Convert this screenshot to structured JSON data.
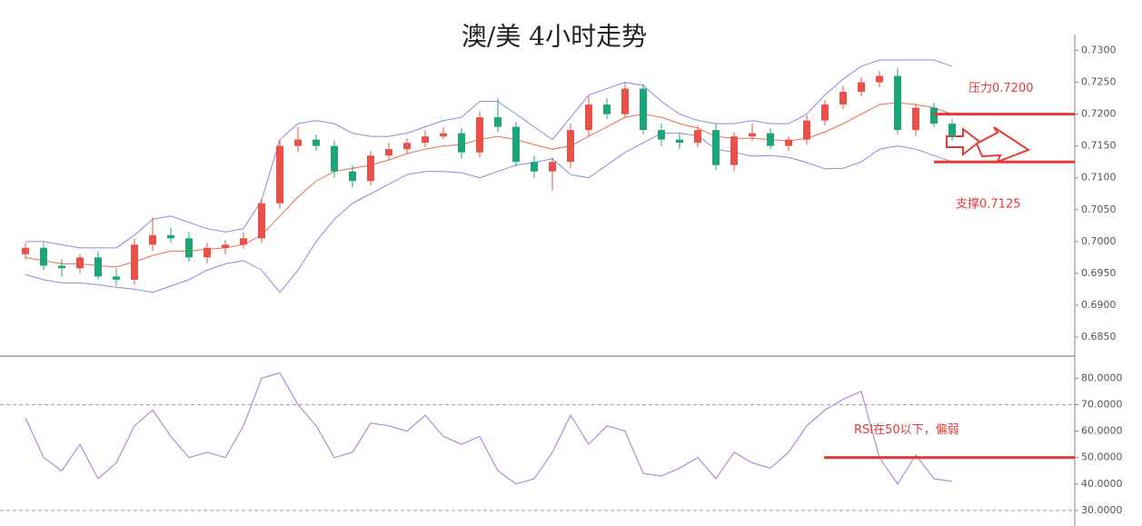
{
  "chart_data": [
    {
      "type": "candlestick",
      "title": "澳/美 4小时走势",
      "open": [
        0.698,
        0.699,
        0.6962,
        0.6958,
        0.6975,
        0.6945,
        0.694,
        0.6995,
        0.701,
        0.7005,
        0.6975,
        0.699,
        0.6995,
        0.7005,
        0.706,
        0.715,
        0.716,
        0.715,
        0.711,
        0.7095,
        0.7135,
        0.7145,
        0.7155,
        0.7165,
        0.717,
        0.714,
        0.7195,
        0.718,
        0.7125,
        0.711,
        0.7125,
        0.7175,
        0.7215,
        0.72,
        0.724,
        0.7175,
        0.716,
        0.7155,
        0.7175,
        0.712,
        0.7165,
        0.717,
        0.715,
        0.716,
        0.719,
        0.7215,
        0.7235,
        0.725,
        0.726,
        0.7175,
        0.721,
        0.7185
      ],
      "high": [
        0.6998,
        0.6998,
        0.6972,
        0.698,
        0.6985,
        0.6958,
        0.7005,
        0.7038,
        0.7022,
        0.7015,
        0.6998,
        0.7002,
        0.7015,
        0.7068,
        0.716,
        0.718,
        0.7168,
        0.7158,
        0.712,
        0.7142,
        0.7155,
        0.7162,
        0.7175,
        0.718,
        0.7178,
        0.7205,
        0.7225,
        0.7188,
        0.7135,
        0.7132,
        0.7185,
        0.7228,
        0.7225,
        0.725,
        0.7248,
        0.7185,
        0.717,
        0.7182,
        0.7185,
        0.7172,
        0.7185,
        0.7178,
        0.7165,
        0.7198,
        0.7222,
        0.7245,
        0.7258,
        0.7268,
        0.7272,
        0.7215,
        0.7218,
        0.7192
      ],
      "low": [
        0.6972,
        0.6955,
        0.6945,
        0.695,
        0.694,
        0.693,
        0.6932,
        0.6985,
        0.6998,
        0.6968,
        0.6965,
        0.698,
        0.6988,
        0.6998,
        0.7052,
        0.714,
        0.7142,
        0.71,
        0.7085,
        0.7088,
        0.7128,
        0.7138,
        0.7148,
        0.716,
        0.713,
        0.7132,
        0.7172,
        0.7118,
        0.71,
        0.708,
        0.7115,
        0.7165,
        0.7192,
        0.7195,
        0.7168,
        0.715,
        0.7145,
        0.7148,
        0.7112,
        0.711,
        0.7158,
        0.7145,
        0.7142,
        0.7152,
        0.7182,
        0.7208,
        0.7228,
        0.7242,
        0.7168,
        0.7165,
        0.718,
        0.7158
      ],
      "close": [
        0.699,
        0.6962,
        0.6958,
        0.6975,
        0.6945,
        0.694,
        0.6995,
        0.701,
        0.7005,
        0.6975,
        0.699,
        0.6995,
        0.7005,
        0.706,
        0.715,
        0.716,
        0.715,
        0.711,
        0.7095,
        0.7135,
        0.7145,
        0.7155,
        0.7165,
        0.717,
        0.714,
        0.7195,
        0.718,
        0.7125,
        0.711,
        0.7125,
        0.7175,
        0.7215,
        0.72,
        0.724,
        0.7175,
        0.716,
        0.7155,
        0.7175,
        0.712,
        0.7165,
        0.717,
        0.715,
        0.716,
        0.719,
        0.7215,
        0.7235,
        0.725,
        0.726,
        0.7175,
        0.721,
        0.7185,
        0.7165
      ],
      "up_color": "#e8504a",
      "down_color": "#1fa37a",
      "bollinger": {
        "upper": [
          0.7,
          0.7,
          0.6995,
          0.699,
          0.699,
          0.699,
          0.701,
          0.7035,
          0.704,
          0.703,
          0.702,
          0.7015,
          0.702,
          0.7065,
          0.716,
          0.7185,
          0.719,
          0.7185,
          0.717,
          0.7165,
          0.7165,
          0.717,
          0.718,
          0.719,
          0.7195,
          0.722,
          0.722,
          0.72,
          0.718,
          0.716,
          0.7195,
          0.723,
          0.724,
          0.725,
          0.7245,
          0.722,
          0.72,
          0.719,
          0.7185,
          0.7185,
          0.719,
          0.7185,
          0.7185,
          0.72,
          0.723,
          0.7255,
          0.7275,
          0.7285,
          0.7285,
          0.7285,
          0.7285,
          0.7275
        ],
        "middle": [
          0.6975,
          0.697,
          0.6965,
          0.6965,
          0.6962,
          0.696,
          0.6968,
          0.6978,
          0.6985,
          0.6985,
          0.6988,
          0.699,
          0.6995,
          0.701,
          0.704,
          0.707,
          0.7095,
          0.711,
          0.7115,
          0.712,
          0.7128,
          0.7138,
          0.7145,
          0.715,
          0.7152,
          0.716,
          0.7165,
          0.716,
          0.7152,
          0.7145,
          0.715,
          0.7165,
          0.718,
          0.7195,
          0.72,
          0.7195,
          0.7185,
          0.7178,
          0.7165,
          0.7162,
          0.7162,
          0.716,
          0.7158,
          0.7162,
          0.7172,
          0.7185,
          0.72,
          0.7215,
          0.7218,
          0.7215,
          0.721,
          0.72
        ],
        "lower": [
          0.6948,
          0.694,
          0.6935,
          0.6935,
          0.6932,
          0.6928,
          0.6925,
          0.692,
          0.693,
          0.694,
          0.6955,
          0.6965,
          0.697,
          0.6955,
          0.692,
          0.6955,
          0.7,
          0.7035,
          0.706,
          0.7075,
          0.709,
          0.7105,
          0.711,
          0.711,
          0.7108,
          0.71,
          0.711,
          0.712,
          0.7124,
          0.713,
          0.7105,
          0.71,
          0.712,
          0.714,
          0.7155,
          0.717,
          0.717,
          0.7166,
          0.7145,
          0.714,
          0.7134,
          0.7135,
          0.7132,
          0.7124,
          0.7114,
          0.7115,
          0.7125,
          0.7145,
          0.715,
          0.7145,
          0.7135,
          0.7125
        ],
        "band_color": "#8f86e0",
        "middle_color": "#ef6a4a"
      },
      "ylim": [
        0.682,
        0.7325
      ],
      "yticks": [
        {
          "value": 0.73,
          "label": "0.7300"
        },
        {
          "value": 0.725,
          "label": "0.7250"
        },
        {
          "value": 0.72,
          "label": "0.7200"
        },
        {
          "value": 0.715,
          "label": "0.7150"
        },
        {
          "value": 0.71,
          "label": "0.7100"
        },
        {
          "value": 0.705,
          "label": "0.7050"
        },
        {
          "value": 0.7,
          "label": "0.7000"
        },
        {
          "value": 0.695,
          "label": "0.6950"
        },
        {
          "value": 0.69,
          "label": "0.6900"
        },
        {
          "value": 0.685,
          "label": "0.6850"
        }
      ],
      "levels": [
        {
          "value": 0.72,
          "label": "压力0.7200"
        },
        {
          "value": 0.7125,
          "label": "支撑0.7125"
        }
      ],
      "level_color": "#e53935"
    },
    {
      "type": "line",
      "values": [
        65,
        50,
        45,
        55,
        42,
        48,
        62,
        68,
        58,
        50,
        52,
        50,
        62,
        80,
        82,
        70,
        62,
        50,
        52,
        63,
        62,
        60,
        66,
        58,
        55,
        58,
        45,
        40,
        42,
        52,
        66,
        55,
        62,
        60,
        44,
        43,
        46,
        50,
        42,
        52,
        48,
        46,
        52,
        62,
        68,
        72,
        75,
        50,
        40,
        51,
        42,
        41
      ],
      "color": "#b48ad0",
      "ylim": [
        25.5,
        88
      ],
      "yticks": [
        {
          "value": 80,
          "label": "80.0000"
        },
        {
          "value": 70,
          "label": "70.0000"
        },
        {
          "value": 60,
          "label": "60.0000"
        },
        {
          "value": 50,
          "label": "50.0000"
        },
        {
          "value": 40,
          "label": "40.0000"
        },
        {
          "value": 30,
          "label": "30.0000"
        }
      ],
      "guides": [
        70,
        30
      ],
      "level": {
        "value": 50,
        "label": "RSI在50以下，偏弱"
      },
      "level_color": "#e53935"
    }
  ]
}
